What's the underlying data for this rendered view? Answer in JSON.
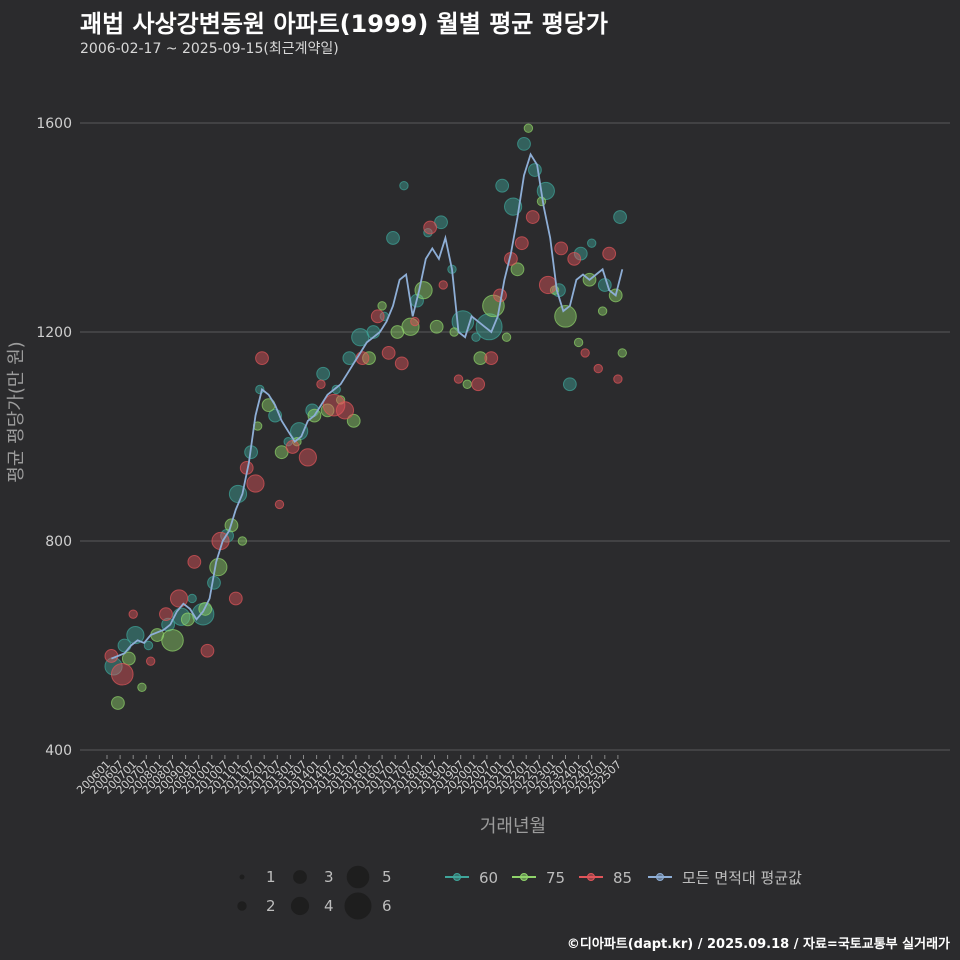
{
  "header": {
    "title": "괘법 사상강변동원 아파트(1999) 월별 평균 평당가",
    "subtitle": "2006-02-17 ~ 2025-09-15(최근계약일)"
  },
  "footer": "©디아파트(dapt.kr) / 2025.09.18 / 자료=국토교통부 실거래가",
  "colors": {
    "background": "#2b2b2d",
    "grid": "#5a5a5a",
    "s60": "#3fa59a",
    "s75": "#8fd36a",
    "s85": "#e0555a",
    "avg": "#8eaed6"
  },
  "chart_data": {
    "type": "scatter",
    "xlabel": "거래년월",
    "ylabel": "평균 평당가(만 원)",
    "ylim": [
      400,
      1600
    ],
    "yticks": [
      400,
      800,
      1200,
      1600
    ],
    "xticks": [
      "200601",
      "200607",
      "200701",
      "200707",
      "200801",
      "200807",
      "200901",
      "200907",
      "201001",
      "201007",
      "201101",
      "201107",
      "201201",
      "201207",
      "201301",
      "201307",
      "201401",
      "201407",
      "201501",
      "201507",
      "201601",
      "201607",
      "201701",
      "201707",
      "201801",
      "201807",
      "201901",
      "201907",
      "202001",
      "202007",
      "202101",
      "202107",
      "202201",
      "202207",
      "202301",
      "202307",
      "202401",
      "202407",
      "202501",
      "202507"
    ],
    "size_legend": {
      "title": "",
      "values": [
        "1",
        "2",
        "3",
        "4",
        "5",
        "6"
      ]
    },
    "series_legend": [
      "60",
      "75",
      "85",
      "모든 면적대 평균값"
    ],
    "average_line": {
      "name": "모든 면적대 평균값",
      "points": [
        [
          "2006-03",
          575
        ],
        [
          "2006-06",
          580
        ],
        [
          "2006-09",
          585
        ],
        [
          "2006-12",
          600
        ],
        [
          "2007-03",
          610
        ],
        [
          "2007-06",
          605
        ],
        [
          "2007-09",
          620
        ],
        [
          "2007-12",
          625
        ],
        [
          "2008-03",
          630
        ],
        [
          "2008-06",
          640
        ],
        [
          "2008-09",
          665
        ],
        [
          "2008-12",
          680
        ],
        [
          "2009-03",
          670
        ],
        [
          "2009-06",
          650
        ],
        [
          "2009-09",
          665
        ],
        [
          "2009-12",
          690
        ],
        [
          "2010-03",
          760
        ],
        [
          "2010-06",
          800
        ],
        [
          "2010-09",
          820
        ],
        [
          "2010-12",
          860
        ],
        [
          "2011-03",
          890
        ],
        [
          "2011-06",
          950
        ],
        [
          "2011-09",
          1040
        ],
        [
          "2011-12",
          1090
        ],
        [
          "2012-03",
          1080
        ],
        [
          "2012-06",
          1060
        ],
        [
          "2012-09",
          1030
        ],
        [
          "2012-12",
          1010
        ],
        [
          "2013-03",
          990
        ],
        [
          "2013-06",
          1000
        ],
        [
          "2013-09",
          1030
        ],
        [
          "2013-12",
          1040
        ],
        [
          "2014-03",
          1060
        ],
        [
          "2014-06",
          1080
        ],
        [
          "2014-09",
          1090
        ],
        [
          "2014-12",
          1100
        ],
        [
          "2015-03",
          1120
        ],
        [
          "2015-06",
          1140
        ],
        [
          "2015-09",
          1160
        ],
        [
          "2015-12",
          1180
        ],
        [
          "2016-03",
          1190
        ],
        [
          "2016-06",
          1200
        ],
        [
          "2016-09",
          1220
        ],
        [
          "2016-12",
          1250
        ],
        [
          "2017-03",
          1300
        ],
        [
          "2017-06",
          1310
        ],
        [
          "2017-09",
          1230
        ],
        [
          "2017-12",
          1280
        ],
        [
          "2018-03",
          1340
        ],
        [
          "2018-06",
          1360
        ],
        [
          "2018-09",
          1340
        ],
        [
          "2018-12",
          1380
        ],
        [
          "2019-03",
          1320
        ],
        [
          "2019-06",
          1200
        ],
        [
          "2019-09",
          1190
        ],
        [
          "2019-12",
          1230
        ],
        [
          "2020-03",
          1220
        ],
        [
          "2020-06",
          1210
        ],
        [
          "2020-09",
          1200
        ],
        [
          "2020-12",
          1230
        ],
        [
          "2021-03",
          1300
        ],
        [
          "2021-06",
          1350
        ],
        [
          "2021-09",
          1420
        ],
        [
          "2021-12",
          1500
        ],
        [
          "2022-03",
          1540
        ],
        [
          "2022-06",
          1520
        ],
        [
          "2022-09",
          1440
        ],
        [
          "2022-12",
          1380
        ],
        [
          "2023-03",
          1280
        ],
        [
          "2023-06",
          1240
        ],
        [
          "2023-09",
          1250
        ],
        [
          "2023-12",
          1300
        ],
        [
          "2024-03",
          1310
        ],
        [
          "2024-06",
          1300
        ],
        [
          "2024-09",
          1310
        ],
        [
          "2024-12",
          1320
        ],
        [
          "2025-03",
          1280
        ],
        [
          "2025-06",
          1270
        ],
        [
          "2025-09",
          1320
        ]
      ]
    },
    "scatter_series": [
      {
        "name": "60",
        "points": [
          [
            "2006-04",
            560,
            4
          ],
          [
            "2006-09",
            600,
            3
          ],
          [
            "2007-02",
            620,
            4
          ],
          [
            "2007-08",
            600,
            2
          ],
          [
            "2008-05",
            640,
            3
          ],
          [
            "2008-11",
            655,
            4
          ],
          [
            "2009-04",
            690,
            2
          ],
          [
            "2009-09",
            660,
            5
          ],
          [
            "2010-02",
            720,
            3
          ],
          [
            "2010-08",
            810,
            3
          ],
          [
            "2011-01",
            890,
            4
          ],
          [
            "2011-07",
            970,
            3
          ],
          [
            "2011-11",
            1090,
            2
          ],
          [
            "2012-06",
            1040,
            3
          ],
          [
            "2012-12",
            990,
            2
          ],
          [
            "2013-05",
            1010,
            4
          ],
          [
            "2013-11",
            1050,
            3
          ],
          [
            "2014-04",
            1120,
            3
          ],
          [
            "2014-10",
            1090,
            2
          ],
          [
            "2015-04",
            1150,
            3
          ],
          [
            "2015-09",
            1190,
            4
          ],
          [
            "2016-03",
            1200,
            3
          ],
          [
            "2016-08",
            1230,
            2
          ],
          [
            "2016-12",
            1380,
            3
          ],
          [
            "2017-05",
            1480,
            2
          ],
          [
            "2017-11",
            1260,
            3
          ],
          [
            "2018-04",
            1390,
            2
          ],
          [
            "2018-10",
            1410,
            3
          ],
          [
            "2019-03",
            1320,
            2
          ],
          [
            "2019-08",
            1220,
            5
          ],
          [
            "2020-02",
            1190,
            2
          ],
          [
            "2020-08",
            1210,
            6
          ],
          [
            "2021-02",
            1480,
            3
          ],
          [
            "2021-07",
            1440,
            4
          ],
          [
            "2021-12",
            1560,
            3
          ],
          [
            "2022-05",
            1510,
            3
          ],
          [
            "2022-10",
            1470,
            4
          ],
          [
            "2023-04",
            1280,
            3
          ],
          [
            "2023-09",
            1100,
            3
          ],
          [
            "2024-02",
            1350,
            3
          ],
          [
            "2024-07",
            1370,
            2
          ],
          [
            "2025-01",
            1290,
            3
          ],
          [
            "2025-08",
            1420,
            3
          ]
        ]
      },
      {
        "name": "75",
        "points": [
          [
            "2006-06",
            490,
            3
          ],
          [
            "2006-11",
            575,
            3
          ],
          [
            "2007-05",
            520,
            2
          ],
          [
            "2007-12",
            620,
            3
          ],
          [
            "2008-07",
            610,
            5
          ],
          [
            "2009-02",
            650,
            3
          ],
          [
            "2009-10",
            670,
            3
          ],
          [
            "2010-04",
            750,
            4
          ],
          [
            "2010-10",
            830,
            3
          ],
          [
            "2011-03",
            800,
            2
          ],
          [
            "2011-10",
            1020,
            2
          ],
          [
            "2012-03",
            1060,
            3
          ],
          [
            "2012-09",
            970,
            3
          ],
          [
            "2013-04",
            990,
            2
          ],
          [
            "2013-12",
            1040,
            3
          ],
          [
            "2014-06",
            1050,
            3
          ],
          [
            "2014-12",
            1070,
            2
          ],
          [
            "2015-06",
            1030,
            3
          ],
          [
            "2016-01",
            1150,
            3
          ],
          [
            "2016-07",
            1250,
            2
          ],
          [
            "2017-02",
            1200,
            3
          ],
          [
            "2017-08",
            1210,
            4
          ],
          [
            "2018-02",
            1280,
            4
          ],
          [
            "2018-08",
            1210,
            3
          ],
          [
            "2019-04",
            1200,
            2
          ],
          [
            "2019-10",
            1100,
            2
          ],
          [
            "2020-04",
            1150,
            3
          ],
          [
            "2020-10",
            1250,
            5
          ],
          [
            "2021-04",
            1190,
            2
          ],
          [
            "2021-09",
            1320,
            3
          ],
          [
            "2022-02",
            1590,
            2
          ],
          [
            "2022-08",
            1450,
            2
          ],
          [
            "2023-02",
            1280,
            2
          ],
          [
            "2023-07",
            1230,
            5
          ],
          [
            "2024-01",
            1180,
            2
          ],
          [
            "2024-06",
            1300,
            3
          ],
          [
            "2024-12",
            1240,
            2
          ],
          [
            "2025-06",
            1270,
            3
          ],
          [
            "2025-09",
            1160,
            2
          ]
        ]
      },
      {
        "name": "85",
        "points": [
          [
            "2006-03",
            580,
            3
          ],
          [
            "2006-08",
            545,
            5
          ],
          [
            "2007-01",
            660,
            2
          ],
          [
            "2007-09",
            570,
            2
          ],
          [
            "2008-04",
            660,
            3
          ],
          [
            "2008-10",
            690,
            4
          ],
          [
            "2009-05",
            760,
            3
          ],
          [
            "2009-11",
            590,
            3
          ],
          [
            "2010-05",
            800,
            4
          ],
          [
            "2010-12",
            690,
            3
          ],
          [
            "2011-05",
            940,
            3
          ],
          [
            "2011-09",
            910,
            4
          ],
          [
            "2011-12",
            1150,
            3
          ],
          [
            "2012-08",
            870,
            2
          ],
          [
            "2013-02",
            980,
            3
          ],
          [
            "2013-09",
            960,
            4
          ],
          [
            "2014-03",
            1100,
            2
          ],
          [
            "2014-09",
            1060,
            5
          ],
          [
            "2015-02",
            1050,
            4
          ],
          [
            "2015-10",
            1150,
            3
          ],
          [
            "2016-05",
            1230,
            3
          ],
          [
            "2016-10",
            1160,
            3
          ],
          [
            "2017-04",
            1140,
            3
          ],
          [
            "2017-10",
            1220,
            2
          ],
          [
            "2018-05",
            1400,
            3
          ],
          [
            "2018-11",
            1290,
            2
          ],
          [
            "2019-06",
            1110,
            2
          ],
          [
            "2020-03",
            1100,
            3
          ],
          [
            "2020-09",
            1150,
            3
          ],
          [
            "2021-01",
            1270,
            3
          ],
          [
            "2021-06",
            1340,
            3
          ],
          [
            "2021-11",
            1370,
            3
          ],
          [
            "2022-04",
            1420,
            3
          ],
          [
            "2022-11",
            1290,
            4
          ],
          [
            "2023-05",
            1360,
            3
          ],
          [
            "2023-11",
            1340,
            3
          ],
          [
            "2024-04",
            1160,
            2
          ],
          [
            "2024-10",
            1130,
            2
          ],
          [
            "2025-03",
            1350,
            3
          ],
          [
            "2025-07",
            1110,
            2
          ]
        ]
      }
    ]
  }
}
